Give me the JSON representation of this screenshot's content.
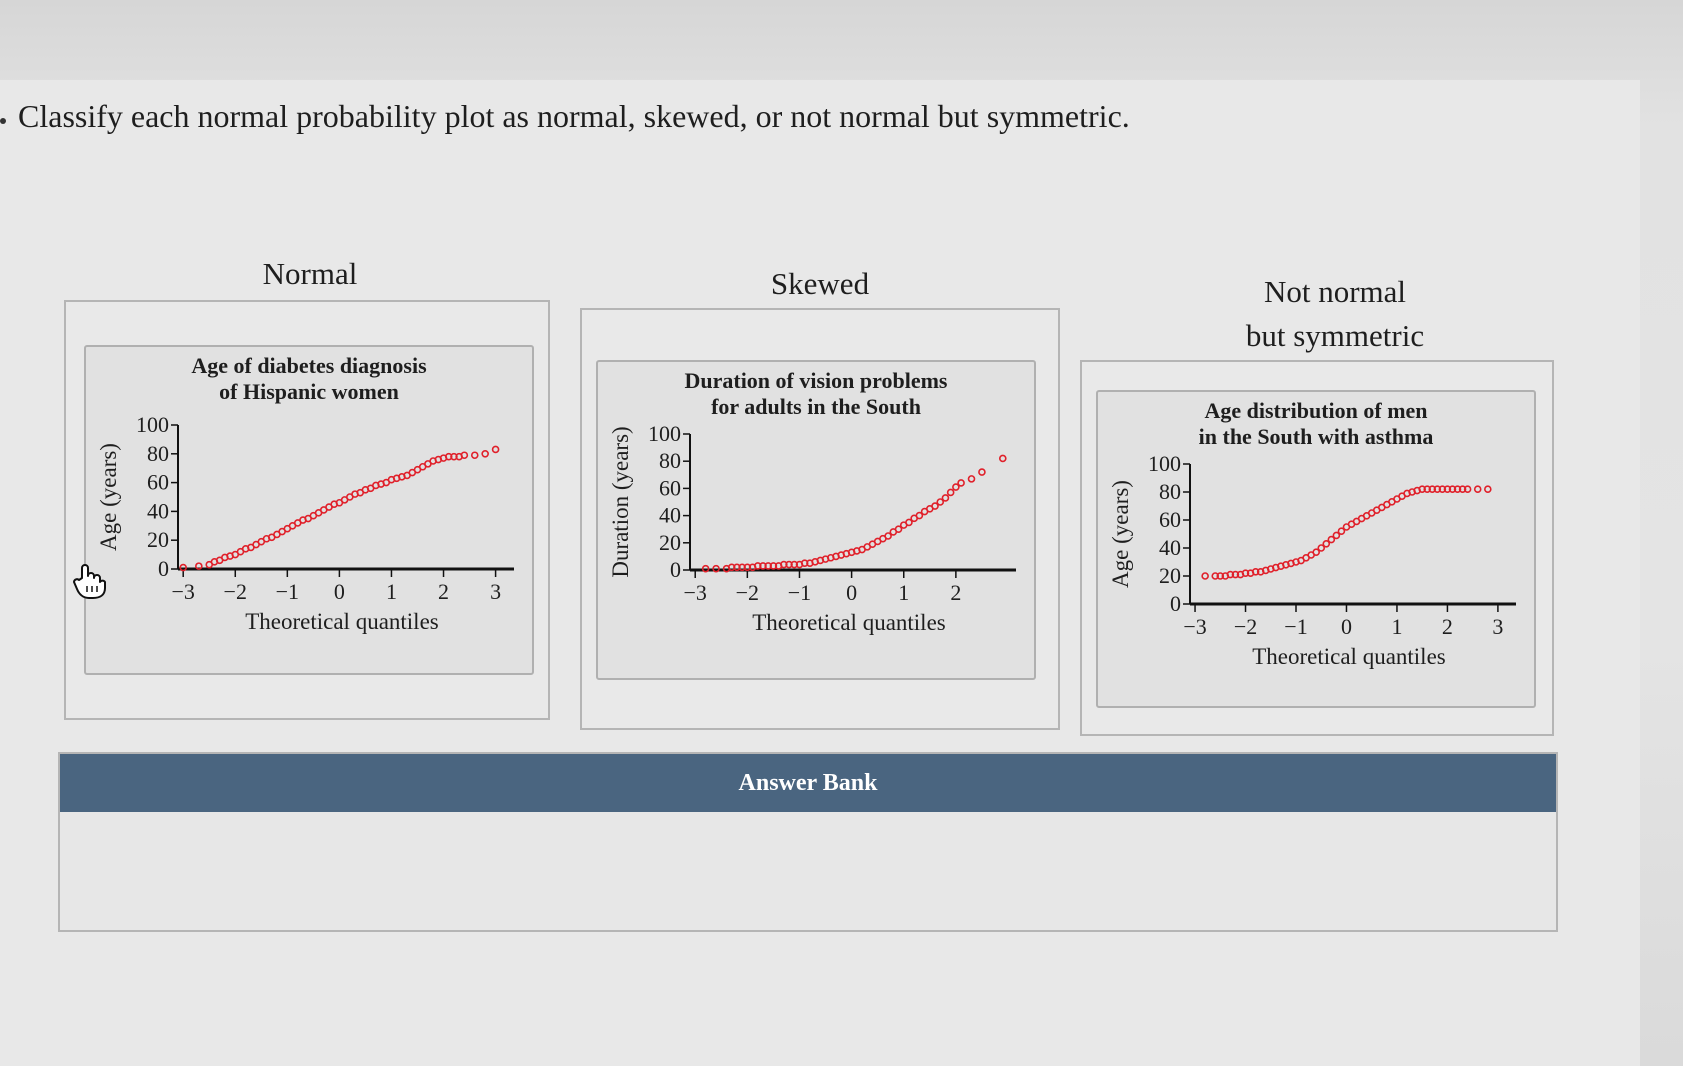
{
  "question": "Classify each normal probability plot as normal, skewed, or not normal but symmetric.",
  "categories": [
    {
      "label": "Normal"
    },
    {
      "label": "Skewed"
    },
    {
      "label_line1": "Not normal",
      "label_line2": "but symmetric"
    }
  ],
  "answer_bank": {
    "title": "Answer Bank"
  },
  "cursor_icon": "hand-pointer-icon",
  "chart_data": [
    {
      "type": "scatter",
      "title_line1": "Age of diabetes diagnosis",
      "title_line2": "of Hispanic women",
      "xlabel": "Theoretical quantiles",
      "ylabel": "Age (years)",
      "xlim": [
        -3.1,
        3.2
      ],
      "ylim": [
        0,
        100
      ],
      "xticks": [
        "−3",
        "−2",
        "−1",
        "0",
        "1",
        "2",
        "3"
      ],
      "yticks": [
        "0",
        "20",
        "40",
        "60",
        "80",
        "100"
      ],
      "x": [
        -3.0,
        -2.7,
        -2.5,
        -2.4,
        -2.3,
        -2.2,
        -2.1,
        -2.0,
        -1.9,
        -1.8,
        -1.7,
        -1.6,
        -1.5,
        -1.4,
        -1.3,
        -1.2,
        -1.1,
        -1.0,
        -0.9,
        -0.8,
        -0.7,
        -0.6,
        -0.5,
        -0.4,
        -0.3,
        -0.2,
        -0.1,
        0.0,
        0.1,
        0.2,
        0.3,
        0.4,
        0.5,
        0.6,
        0.7,
        0.8,
        0.9,
        1.0,
        1.1,
        1.2,
        1.3,
        1.4,
        1.5,
        1.6,
        1.7,
        1.8,
        1.9,
        2.0,
        2.1,
        2.2,
        2.3,
        2.4,
        2.6,
        2.8,
        3.0
      ],
      "y": [
        1,
        2,
        3,
        5,
        6,
        8,
        9,
        10,
        12,
        14,
        15,
        17,
        19,
        21,
        22,
        24,
        26,
        28,
        30,
        32,
        34,
        35,
        37,
        39,
        41,
        43,
        45,
        46,
        48,
        50,
        52,
        53,
        55,
        56,
        58,
        59,
        60,
        62,
        63,
        64,
        65,
        67,
        69,
        71,
        73,
        75,
        76,
        77,
        78,
        78,
        78,
        79,
        79,
        80,
        83
      ],
      "color": "#e0202a"
    },
    {
      "type": "scatter",
      "title_line1": "Duration of vision problems",
      "title_line2": "for adults in the South",
      "xlabel": "Theoretical quantiles",
      "ylabel": "Duration (years)",
      "xlim": [
        -3.1,
        3.0
      ],
      "ylim": [
        0,
        100
      ],
      "xticks": [
        "−3",
        "−2",
        "−1",
        "0",
        "1",
        "2"
      ],
      "yticks": [
        "0",
        "20",
        "40",
        "60",
        "80",
        "100"
      ],
      "x": [
        -2.8,
        -2.6,
        -2.4,
        -2.3,
        -2.2,
        -2.1,
        -2.0,
        -1.9,
        -1.8,
        -1.7,
        -1.6,
        -1.5,
        -1.4,
        -1.3,
        -1.2,
        -1.1,
        -1.0,
        -0.9,
        -0.8,
        -0.7,
        -0.6,
        -0.5,
        -0.4,
        -0.3,
        -0.2,
        -0.1,
        0.0,
        0.1,
        0.2,
        0.3,
        0.4,
        0.5,
        0.6,
        0.7,
        0.8,
        0.9,
        1.0,
        1.1,
        1.2,
        1.3,
        1.4,
        1.5,
        1.6,
        1.7,
        1.8,
        1.9,
        2.0,
        2.1,
        2.3,
        2.5,
        2.9
      ],
      "y": [
        1,
        1,
        1,
        2,
        2,
        2,
        2,
        2,
        3,
        3,
        3,
        3,
        3,
        4,
        4,
        4,
        4,
        5,
        5,
        6,
        7,
        8,
        9,
        10,
        11,
        12,
        13,
        14,
        15,
        17,
        19,
        21,
        23,
        25,
        28,
        30,
        33,
        35,
        38,
        40,
        43,
        45,
        47,
        50,
        53,
        57,
        61,
        64,
        67,
        72,
        82
      ],
      "color": "#e0202a"
    },
    {
      "type": "scatter",
      "title_line1": "Age distribution of men",
      "title_line2": "in the South with asthma",
      "xlabel": "Theoretical quantiles",
      "ylabel": "Age (years)",
      "xlim": [
        -3.1,
        3.2
      ],
      "ylim": [
        0,
        100
      ],
      "xticks": [
        "−3",
        "−2",
        "−1",
        "0",
        "1",
        "2",
        "3"
      ],
      "yticks": [
        "0",
        "20",
        "40",
        "60",
        "80",
        "100"
      ],
      "x": [
        -2.8,
        -2.6,
        -2.5,
        -2.4,
        -2.3,
        -2.2,
        -2.1,
        -2.0,
        -1.9,
        -1.8,
        -1.7,
        -1.6,
        -1.5,
        -1.4,
        -1.3,
        -1.2,
        -1.1,
        -1.0,
        -0.9,
        -0.8,
        -0.7,
        -0.6,
        -0.5,
        -0.4,
        -0.3,
        -0.2,
        -0.1,
        0.0,
        0.1,
        0.2,
        0.3,
        0.4,
        0.5,
        0.6,
        0.7,
        0.8,
        0.9,
        1.0,
        1.1,
        1.2,
        1.3,
        1.4,
        1.5,
        1.6,
        1.7,
        1.8,
        1.9,
        2.0,
        2.1,
        2.2,
        2.3,
        2.4,
        2.6,
        2.8
      ],
      "y": [
        20,
        20,
        20,
        20,
        21,
        21,
        21,
        22,
        22,
        23,
        23,
        24,
        25,
        26,
        27,
        28,
        29,
        30,
        31,
        33,
        35,
        37,
        40,
        43,
        46,
        49,
        52,
        55,
        57,
        59,
        61,
        63,
        65,
        67,
        69,
        71,
        73,
        75,
        77,
        79,
        80,
        81,
        82,
        82,
        82,
        82,
        82,
        82,
        82,
        82,
        82,
        82,
        82,
        82
      ],
      "color": "#e0202a"
    }
  ]
}
